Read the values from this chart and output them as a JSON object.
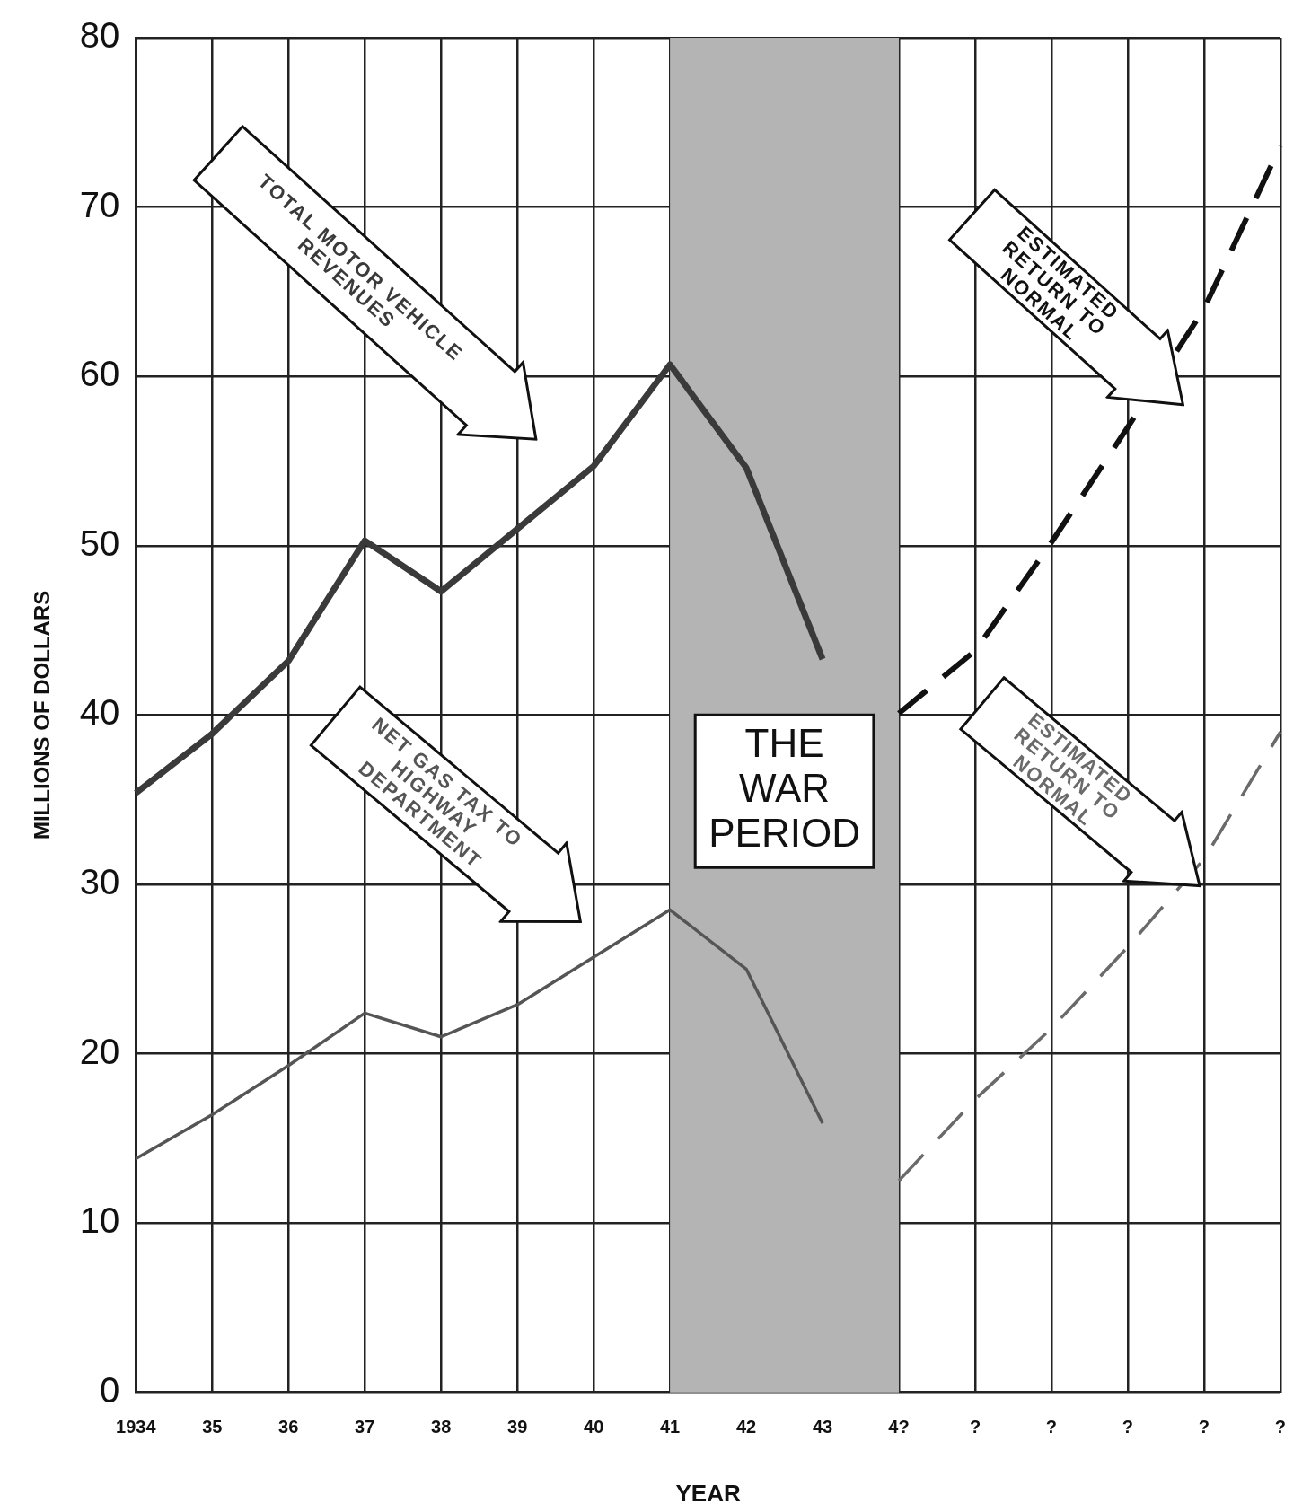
{
  "chart_data": {
    "type": "line",
    "xlabel": "YEAR",
    "ylabel": "MILLIONS OF DOLLARS",
    "categories": [
      "1934",
      "35",
      "36",
      "37",
      "38",
      "39",
      "40",
      "41",
      "42",
      "43",
      "4?",
      "?",
      "?",
      "?",
      "?",
      "?"
    ],
    "ylim": [
      0,
      80
    ],
    "yticks": [
      0,
      10,
      20,
      30,
      40,
      50,
      60,
      70,
      80
    ],
    "grid": true,
    "legend": false,
    "marker": "none",
    "series": [
      {
        "name": "TOTAL MOTOR VEHICLE REVENUES",
        "color": "#3a3a3a",
        "line_style": "solid",
        "values": [
          35.4,
          38.9,
          43.2,
          50.3,
          47.3,
          51,
          54.7,
          60.7,
          54.6,
          43.3,
          null,
          null,
          null,
          null,
          null,
          null
        ]
      },
      {
        "name": "NET GAS TAX TO HIGHWAY DEPARTMENT",
        "color": "#555555",
        "line_style": "solid",
        "values": [
          13.8,
          16.4,
          19.3,
          22.4,
          21,
          22.9,
          25.7,
          28.5,
          25,
          15.9,
          null,
          null,
          null,
          null,
          null,
          null
        ]
      },
      {
        "name": "ESTIMATED RETURN TO NORMAL",
        "color": "#111111",
        "line_style": "dashed",
        "values": [
          null,
          null,
          null,
          null,
          null,
          null,
          null,
          null,
          null,
          null,
          40.1,
          43.8,
          50.2,
          57,
          64,
          73.6
        ]
      },
      {
        "name": "ESTIMATED RETURN TO NORMAL",
        "color": "#6a6a6a",
        "line_style": "dashed",
        "values": [
          null,
          null,
          null,
          null,
          null,
          null,
          null,
          null,
          null,
          null,
          12.5,
          17.3,
          21.5,
          26.3,
          31.5,
          39
        ]
      }
    ],
    "bands": [
      {
        "axis": "x",
        "from": "41",
        "to": "4?",
        "label": "THE WAR PERIOD",
        "color": "#b4b4b4"
      }
    ]
  }
}
